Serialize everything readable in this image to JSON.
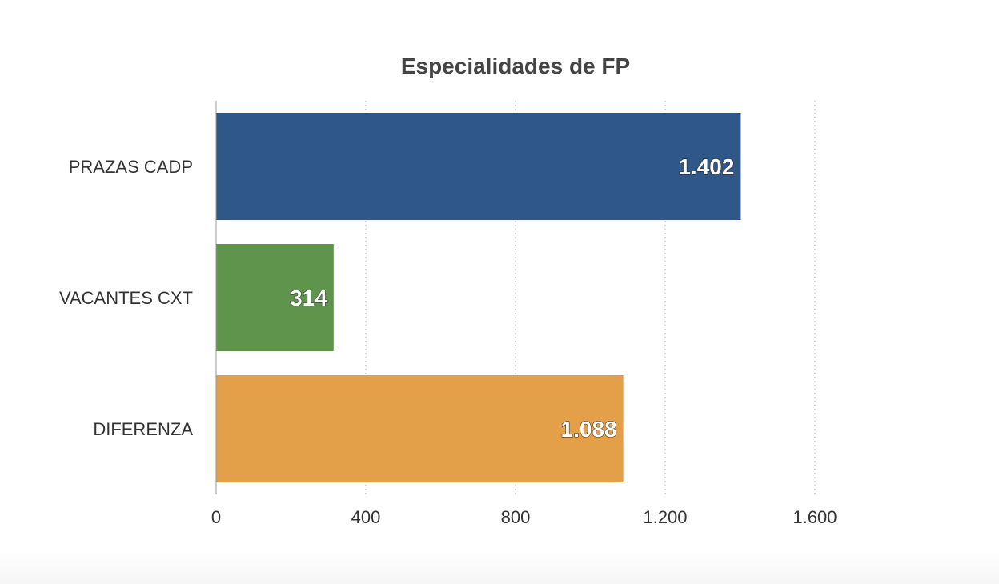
{
  "chart_data": {
    "type": "bar",
    "orientation": "horizontal",
    "title": "Especialidades de FP",
    "categories": [
      "PRAZAS CADP",
      "VACANTES CXT",
      "DIFERENZA"
    ],
    "values": [
      1402,
      314,
      1088
    ],
    "value_labels": [
      "1.402",
      "314",
      "1.088"
    ],
    "colors": [
      "#2f5888",
      "#5e944c",
      "#e4a048"
    ],
    "xlim": [
      0,
      1800
    ],
    "xticks": [
      0,
      400,
      800,
      1200,
      1600
    ],
    "xtick_labels": [
      "0",
      "400",
      "800",
      "1.200",
      "1.600"
    ],
    "grid": "vertical-dotted",
    "legend": "none"
  }
}
